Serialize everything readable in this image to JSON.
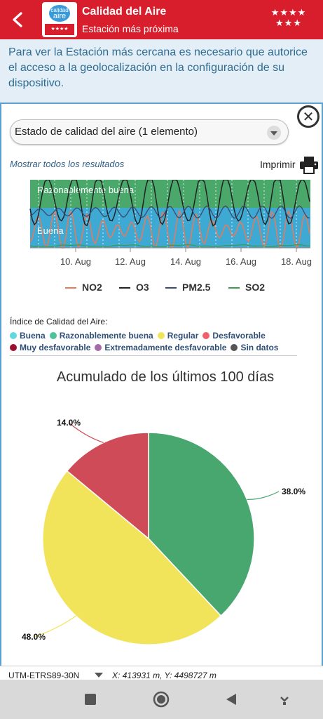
{
  "header": {
    "title": "Calidad del Aire",
    "subtitle": "Estación más próxima",
    "logo_top": "calidad",
    "logo_word": "aire",
    "logo_stars": "★★★★",
    "stars_row1": "★★★★",
    "stars_row2": "★★★"
  },
  "banner": {
    "text": "Para ver la Estación más cercana es necesario que autorice el acceso a la geolocalización en la configuración de su dispositivo."
  },
  "panel": {
    "close_label": "✕",
    "select_value": "Estado de calidad del aire (1 elemento)",
    "show_all": "Mostrar todos los resultados",
    "print_label": "Imprimir"
  },
  "chart_data": [
    {
      "type": "line",
      "bands": [
        {
          "label": "Razonablemente buena",
          "color": "#4aa86b"
        },
        {
          "label": "Buena",
          "color": "#3eaad4"
        }
      ],
      "x_ticks": [
        "10. Aug",
        "12. Aug",
        "14. Aug",
        "16. Aug",
        "18. Aug"
      ],
      "series": [
        {
          "name": "NO2",
          "color": "#e8795a"
        },
        {
          "name": "O3",
          "color": "#222222"
        },
        {
          "name": "PM2.5",
          "color": "#3b4a70"
        },
        {
          "name": "SO2",
          "color": "#3f9a4e"
        }
      ],
      "legend_position": "bottom"
    },
    {
      "type": "pie",
      "title": "Acumulado de los últimos 100 días",
      "slices": [
        {
          "label": "38.0%",
          "value": 38.0,
          "color": "#48a76e"
        },
        {
          "label": "48.0%",
          "value": 48.0,
          "color": "#f2e45a"
        },
        {
          "label": "14.0%",
          "value": 14.0,
          "color": "#cf4b57"
        }
      ]
    }
  ],
  "index_legend": {
    "title": "Índice de Calidad del Aire:",
    "items": [
      {
        "label": "Buena",
        "color": "#5fd8e0"
      },
      {
        "label": "Razonablemente buena",
        "color": "#4cc39a"
      },
      {
        "label": "Regular",
        "color": "#f2e45a"
      },
      {
        "label": "Desfavorable",
        "color": "#f0606a"
      },
      {
        "label": "Muy desfavorable",
        "color": "#9a1030"
      },
      {
        "label": "Extremadamente desfavorable",
        "color": "#a66aa8"
      },
      {
        "label": "Sin datos",
        "color": "#555555"
      }
    ]
  },
  "coords": {
    "system": "UTM-ETRS89-30N",
    "xy": "X: 413931 m, Y: 4498727 m"
  },
  "navbar": {
    "icons": [
      "square-icon",
      "circle-icon",
      "triangle-icon",
      "down-arrow-icon"
    ]
  }
}
